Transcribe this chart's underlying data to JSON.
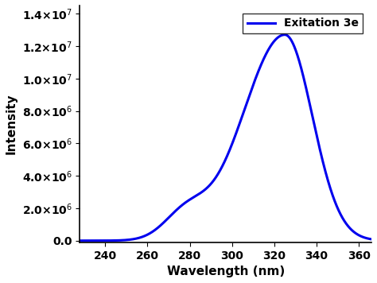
{
  "xlabel": "Wavelength (nm)",
  "ylabel": "Intensity",
  "legend_label": "Exitation 3e",
  "line_color": "#0000EE",
  "xlim": [
    228,
    366
  ],
  "ylim": [
    -100000.0,
    14500000.0
  ],
  "x_ticks": [
    240,
    260,
    280,
    300,
    320,
    340,
    360
  ],
  "y_ticks": [
    0,
    2000000,
    4000000,
    6000000,
    8000000,
    10000000,
    12000000,
    14000000
  ],
  "peak_wavelength": 325,
  "peak_intensity": 12700000.0,
  "shoulder_wavelength": 278,
  "shoulder_intensity": 1550000.0,
  "figsize": [
    4.74,
    3.56
  ],
  "dpi": 100
}
